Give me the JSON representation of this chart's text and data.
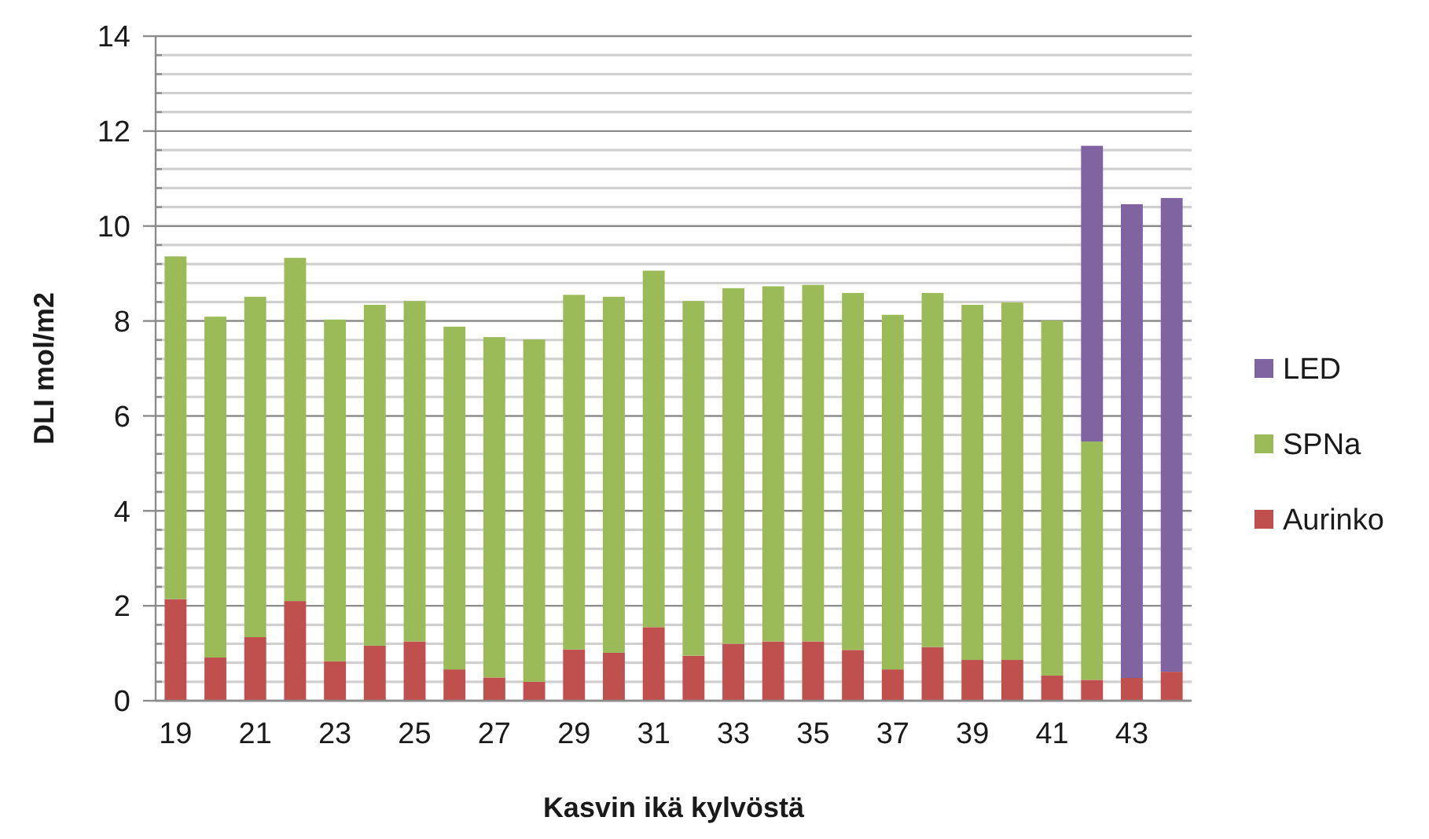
{
  "chart_data": {
    "type": "bar",
    "stacked": true,
    "xlabel": "Kasvin ikä kylvöstä",
    "ylabel": "DLI mol/m2",
    "categories": [
      "19",
      null,
      "21",
      null,
      "23",
      null,
      "25",
      null,
      "27",
      null,
      "29",
      null,
      "31",
      null,
      "33",
      null,
      "35",
      null,
      "37",
      null,
      "39",
      null,
      "41",
      null,
      "43",
      null
    ],
    "series": [
      {
        "name": "Aurinko",
        "color": "#c0504d",
        "values": [
          2.14,
          0.91,
          1.34,
          2.1,
          0.83,
          1.16,
          1.25,
          0.66,
          0.49,
          0.4,
          1.08,
          1.01,
          1.55,
          0.95,
          1.2,
          1.25,
          1.25,
          1.07,
          0.66,
          1.13,
          0.86,
          0.86,
          0.53,
          0.44,
          0.48,
          0.61
        ]
      },
      {
        "name": "SPNa",
        "color": "#9bbb59",
        "values": [
          7.22,
          7.18,
          7.17,
          7.23,
          7.2,
          7.18,
          7.17,
          7.22,
          7.17,
          7.21,
          7.47,
          7.5,
          7.51,
          7.47,
          7.49,
          7.48,
          7.51,
          7.52,
          7.47,
          7.46,
          7.48,
          7.53,
          7.48,
          5.02,
          null,
          null
        ]
      },
      {
        "name": "LED",
        "color": "#8064a2",
        "values": [
          null,
          null,
          null,
          null,
          null,
          null,
          null,
          null,
          null,
          null,
          null,
          null,
          null,
          null,
          null,
          null,
          null,
          null,
          null,
          null,
          null,
          null,
          null,
          6.23,
          9.98,
          9.98
        ]
      }
    ],
    "ylim": [
      0,
      14
    ],
    "yticks": [
      0,
      {
        "value": 0.4,
        "label": null
      },
      {
        "value": 0.8,
        "label": null
      },
      {
        "value": 1.2,
        "label": null
      },
      {
        "value": 1.6,
        "label": null
      },
      2,
      {
        "value": 2.4,
        "label": null
      },
      {
        "value": 2.8,
        "label": null
      },
      {
        "value": 3.2,
        "label": null
      },
      {
        "value": 3.6,
        "label": null
      },
      4,
      {
        "value": 4.4,
        "label": null
      },
      {
        "value": 4.8,
        "label": null
      },
      {
        "value": 5.2,
        "label": null
      },
      {
        "value": 5.6,
        "label": null
      },
      6,
      {
        "value": 6.4,
        "label": null
      },
      {
        "value": 6.8,
        "label": null
      },
      {
        "value": 7.2,
        "label": null
      },
      {
        "value": 7.6,
        "label": null
      },
      8,
      {
        "value": 8.4,
        "label": null
      },
      {
        "value": 8.8,
        "label": null
      },
      {
        "value": 9.2,
        "label": null
      },
      {
        "value": 9.6,
        "label": null
      },
      10,
      {
        "value": 10.4,
        "label": null
      },
      {
        "value": 10.8,
        "label": null
      },
      {
        "value": 11.2,
        "label": null
      },
      {
        "value": 11.6,
        "label": null
      },
      12,
      {
        "value": 12.4,
        "label": null
      },
      {
        "value": 12.8,
        "label": null
      },
      {
        "value": 13.2,
        "label": null
      },
      {
        "value": 13.6,
        "label": null
      },
      14
    ],
    "grid": "y",
    "legend": "right"
  }
}
